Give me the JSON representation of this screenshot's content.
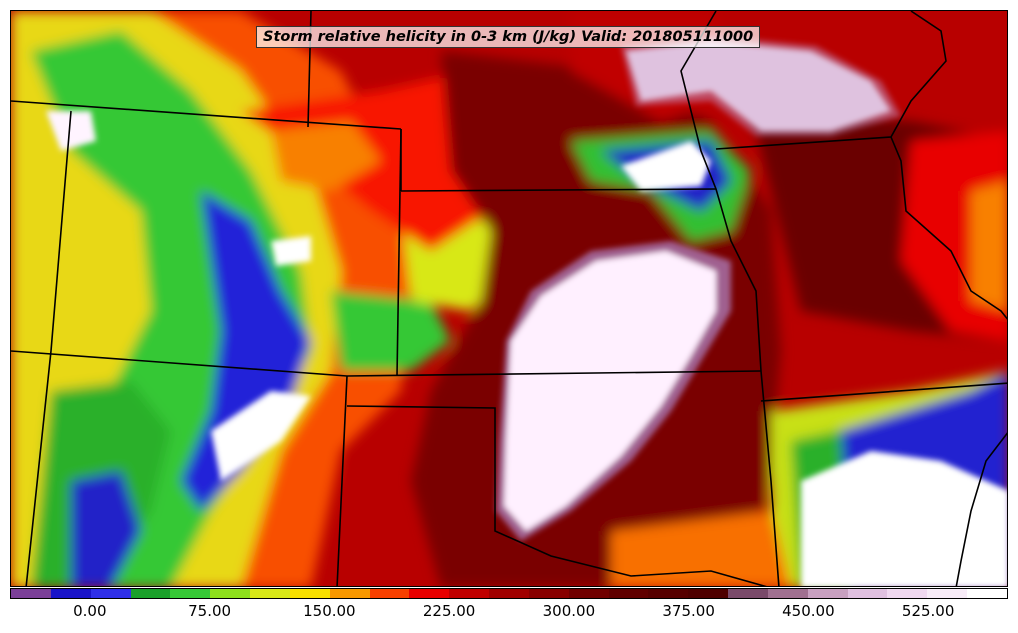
{
  "title": "Storm relative helicity in 0-3 km (J/kg) Valid: 201805111000",
  "colorbar": {
    "min": -50,
    "max": 575,
    "colors": [
      "#7b3f98",
      "#1a14c8",
      "#2f2fe8",
      "#1aa02a",
      "#36c836",
      "#8ee01c",
      "#d8e818",
      "#f8e000",
      "#f89800",
      "#f84000",
      "#e80000",
      "#c00000",
      "#a00000",
      "#880000",
      "#700000",
      "#600000",
      "#560000",
      "#4e0000",
      "#7a4a6a",
      "#a07090",
      "#c8a0c0",
      "#e0c0e0",
      "#f0d8f0",
      "#f8ecf8",
      "#ffffff"
    ],
    "tick_labels": [
      "0.00",
      "75.00",
      "150.00",
      "225.00",
      "300.00",
      "375.00",
      "450.00",
      "525.00"
    ],
    "tick_values": [
      0,
      75,
      150,
      225,
      300,
      375,
      450,
      525
    ]
  },
  "map_colors": {
    "background": "#b00000",
    "low_green": "#36c836",
    "blue": "#2020d8",
    "yellow": "#d8e818",
    "orange": "#f87800",
    "red": "#f81800",
    "dark": "#6a0000",
    "white": "#fff4ff",
    "purple": "#7b3f98",
    "boundary": "#000000"
  }
}
